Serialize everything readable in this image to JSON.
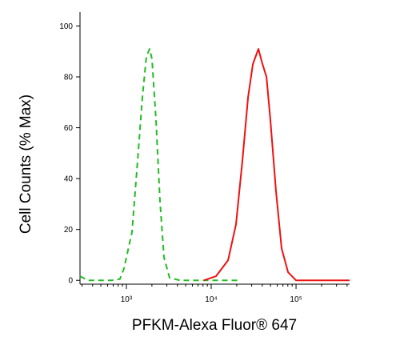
{
  "chart_data": {
    "type": "line",
    "x_label": "PFKM-Alexa Fluor® 647",
    "y_label": "Cell Counts (% Max)",
    "xscale": "log",
    "xlim": [
      284,
      428000
    ],
    "ylim": [
      -1.5,
      105.5
    ],
    "xticks": [
      {
        "value": 1000,
        "label": "10³"
      },
      {
        "value": 10000,
        "label": "10⁴"
      },
      {
        "value": 100000,
        "label": "10⁵"
      }
    ],
    "xminorticks": [
      300,
      400,
      500,
      600,
      700,
      800,
      900,
      2000,
      3000,
      4000,
      5000,
      6000,
      7000,
      8000,
      9000,
      20000,
      30000,
      40000,
      50000,
      60000,
      70000,
      80000,
      90000,
      200000,
      300000,
      400000
    ],
    "yticks": [
      0,
      20,
      40,
      60,
      80,
      100
    ],
    "series": [
      {
        "color": "#22bb22",
        "dashed": true,
        "x": [
          284,
          352,
          676,
          840,
          937,
          1164,
          1355,
          1544,
          1722,
          1880,
          2005,
          2235,
          2490,
          2775,
          3230,
          4285,
          9160,
          21900
        ],
        "values": [
          1.6,
          0,
          0,
          0.5,
          4.7,
          19,
          47,
          72,
          88,
          91,
          87,
          63,
          31,
          9,
          1,
          0,
          0,
          0
        ]
      },
      {
        "color": "#ee1111",
        "dashed": false,
        "x": [
          8220,
          11400,
          15800,
          19600,
          23300,
          27200,
          31000,
          36000,
          40200,
          44800,
          49900,
          58100,
          67600,
          80500,
          100000,
          428000
        ],
        "values": [
          0,
          1.6,
          7.9,
          22,
          47,
          72,
          85,
          91,
          85,
          80,
          63,
          35,
          12.6,
          3.2,
          0,
          0
        ]
      }
    ]
  }
}
